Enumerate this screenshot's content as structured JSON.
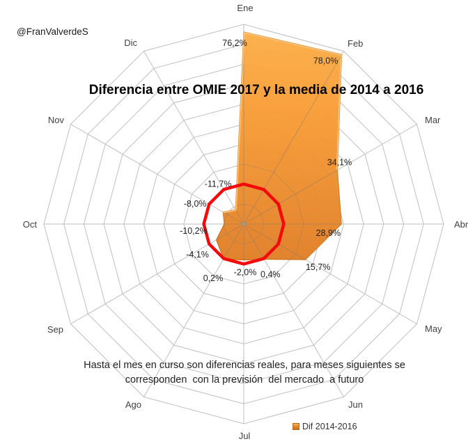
{
  "handle": "@FranValverdeS",
  "title": "Diferencia entre OMIE 2017 y la media de 2014 a 2016",
  "note": {
    "line1": "Hasta el mes en curso son diferencias reales, para meses siguientes se",
    "line2": "corresponden  con la previsión  del mercado  a futuro"
  },
  "legend": {
    "label": "Dif 2014-2016",
    "marker_color": "#E78B28"
  },
  "chart_data": {
    "type": "radar",
    "title": "Diferencia entre OMIE 2017 y la media de 2014 a 2016",
    "categories": [
      "Ene",
      "Feb",
      "Mar",
      "Abr",
      "May",
      "Jun",
      "Jul",
      "Ago",
      "Sep",
      "Oct",
      "Nov",
      "Dic"
    ],
    "series": [
      {
        "name": "Dif 2014-2016",
        "type": "filled-area",
        "color": "#F0922F",
        "values": [
          76.2,
          78.0,
          34.1,
          28.9,
          15.7,
          0.4,
          -2.0,
          0.2,
          -4.1,
          -10.2,
          -8.0,
          -11.7
        ],
        "labels": [
          "76,2%",
          "78,0%",
          "34,1%",
          "28,9%",
          "15,7%",
          "0,4%",
          "-2,0%",
          "0,2%",
          "-4,1%",
          "-10,2%",
          "-8,0%",
          "-11,7%"
        ]
      },
      {
        "name": "zero-reference",
        "type": "line",
        "color": "#F40A0A",
        "values": [
          0,
          0,
          0,
          0,
          0,
          0,
          0,
          0,
          0,
          0,
          0,
          0
        ]
      }
    ],
    "axis": {
      "min": -20,
      "max": 80,
      "step": 10,
      "gridline_color": "#BFBFBF",
      "grid": true
    },
    "legend_position": "bottom"
  }
}
